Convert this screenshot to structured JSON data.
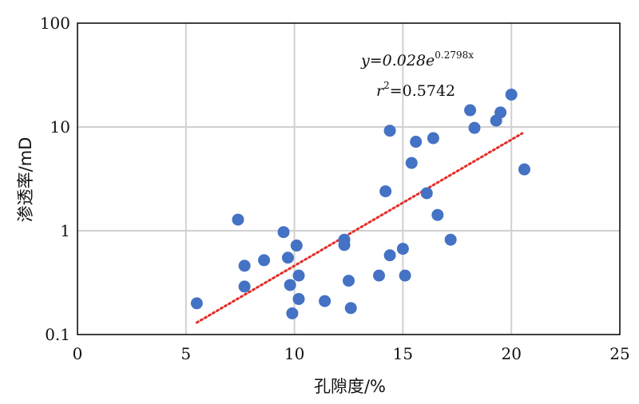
{
  "chart_data": {
    "type": "scatter",
    "xlabel": "孔隙度/%",
    "ylabel": "渗透率/mD",
    "xlim": [
      0,
      25
    ],
    "ylim": [
      0.1,
      100
    ],
    "y_scale": "log",
    "grid": true,
    "x_ticks": [
      "0",
      "5",
      "10",
      "15",
      "20",
      "25"
    ],
    "y_ticks": [
      "0.1",
      "1",
      "10",
      "100"
    ],
    "annotation": {
      "equation_prefix": "y=0.028e",
      "equation_exponent": "0.2798x",
      "r2_label": "r",
      "r2_sup": "2",
      "r2_value": "=0.5742"
    },
    "points": [
      {
        "x": 5.5,
        "y": 0.2
      },
      {
        "x": 7.4,
        "y": 1.28
      },
      {
        "x": 7.7,
        "y": 0.46
      },
      {
        "x": 7.7,
        "y": 0.29
      },
      {
        "x": 8.6,
        "y": 0.52
      },
      {
        "x": 9.5,
        "y": 0.97
      },
      {
        "x": 9.7,
        "y": 0.55
      },
      {
        "x": 9.8,
        "y": 0.3
      },
      {
        "x": 9.9,
        "y": 0.16
      },
      {
        "x": 10.1,
        "y": 0.72
      },
      {
        "x": 10.2,
        "y": 0.37
      },
      {
        "x": 10.2,
        "y": 0.22
      },
      {
        "x": 11.4,
        "y": 0.21
      },
      {
        "x": 12.3,
        "y": 0.82
      },
      {
        "x": 12.3,
        "y": 0.73
      },
      {
        "x": 12.5,
        "y": 0.33
      },
      {
        "x": 12.6,
        "y": 0.18
      },
      {
        "x": 13.9,
        "y": 0.37
      },
      {
        "x": 14.2,
        "y": 2.4
      },
      {
        "x": 14.4,
        "y": 0.58
      },
      {
        "x": 14.4,
        "y": 9.2
      },
      {
        "x": 15.0,
        "y": 0.67
      },
      {
        "x": 15.1,
        "y": 0.37
      },
      {
        "x": 15.4,
        "y": 4.5
      },
      {
        "x": 15.6,
        "y": 7.2
      },
      {
        "x": 16.1,
        "y": 2.3
      },
      {
        "x": 16.4,
        "y": 7.8
      },
      {
        "x": 16.6,
        "y": 1.42
      },
      {
        "x": 17.2,
        "y": 0.82
      },
      {
        "x": 18.1,
        "y": 14.5
      },
      {
        "x": 18.3,
        "y": 9.8
      },
      {
        "x": 19.3,
        "y": 11.5
      },
      {
        "x": 19.5,
        "y": 13.8
      },
      {
        "x": 20.0,
        "y": 20.5
      },
      {
        "x": 20.6,
        "y": 3.9
      }
    ],
    "trendline": {
      "type": "exponential",
      "a": 0.028,
      "b": 0.2798,
      "x_range": [
        5.5,
        20.5
      ],
      "style": "dotted"
    },
    "colors": {
      "points": "#4472c4",
      "trendline": "#e0302a",
      "grid": "#d0d0d0",
      "frame": "#000000"
    }
  }
}
